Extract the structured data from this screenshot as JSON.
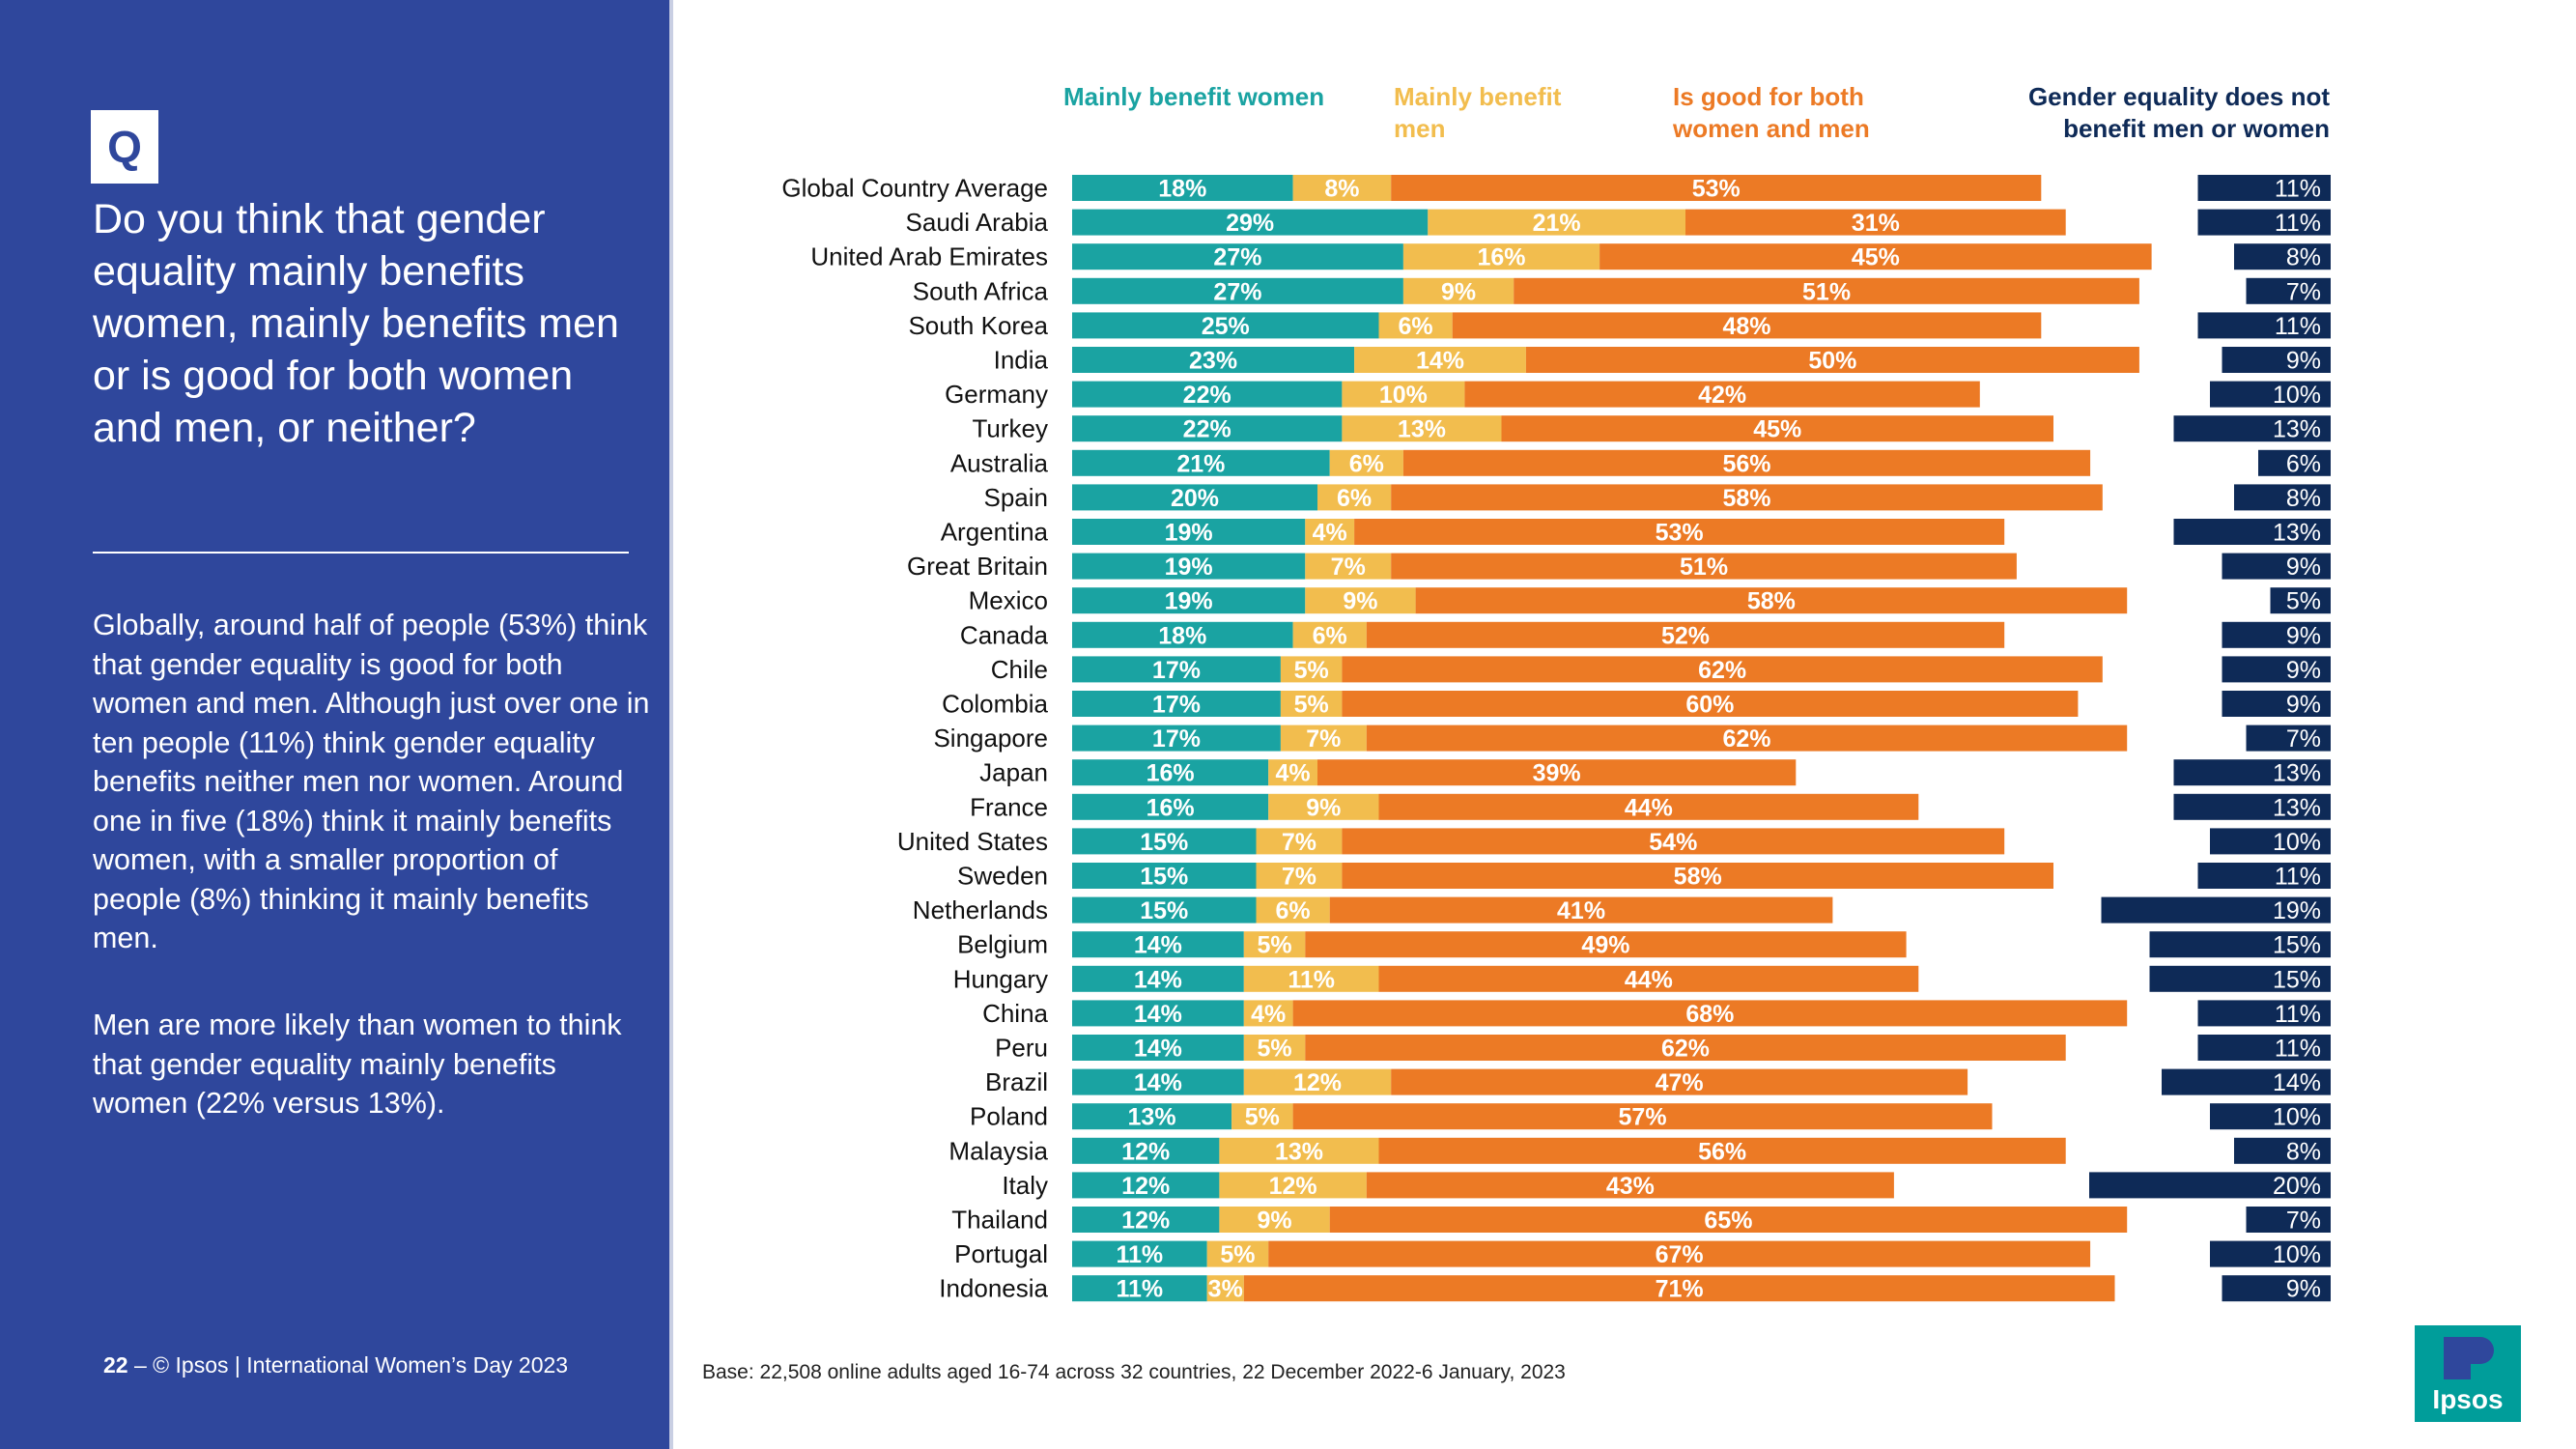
{
  "question": {
    "badge": "Q",
    "text": "Do you think that gender equality mainly benefits women, mainly benefits men or is good for both women and men, or neither?"
  },
  "summary": {
    "paragraph1": "Globally, around half of people (53%) think that gender equality is good for both women and men. Although just over one in ten people (11%) think gender equality benefits neither men nor women. Around one in five (18%) think it mainly benefits women, with a smaller proportion of people (8%) thinking it mainly benefits men.",
    "paragraph2": "Men are more likely than women to think that gender equality mainly benefits women (22% versus 13%)."
  },
  "footer": {
    "page_number": "22",
    "separator": "–",
    "text": "© Ipsos | International Women’s Day 2023"
  },
  "base_note": "Base: 22,508 online adults aged 16-74 across 32 countries, 22 December 2022-6 January, 2023",
  "logo": {
    "text": "Ipsos",
    "color": "#009d9a"
  },
  "colors": {
    "panel": "#2f479c",
    "women": "#1aa3a2",
    "men": "#f2bd4e",
    "both": "#ec7a25",
    "neither": "#0e2a57"
  },
  "chart_data": {
    "type": "bar",
    "orientation": "horizontal",
    "stacked": true,
    "series": [
      {
        "name": "Mainly benefit women",
        "values": [
          18,
          29,
          27,
          27,
          25,
          23,
          22,
          22,
          21,
          20,
          19,
          19,
          19,
          18,
          17,
          17,
          17,
          16,
          16,
          15,
          15,
          15,
          14,
          14,
          14,
          14,
          14,
          13,
          12,
          12,
          12,
          11,
          11
        ]
      },
      {
        "name": "Mainly benefit men",
        "values": [
          8,
          21,
          16,
          9,
          6,
          14,
          10,
          13,
          6,
          6,
          4,
          7,
          9,
          6,
          5,
          5,
          7,
          4,
          9,
          7,
          7,
          6,
          5,
          11,
          4,
          5,
          12,
          5,
          13,
          12,
          9,
          5,
          3
        ]
      },
      {
        "name": "Is good for both women and men",
        "values": [
          53,
          31,
          45,
          51,
          48,
          50,
          42,
          45,
          56,
          58,
          53,
          51,
          58,
          52,
          62,
          60,
          62,
          39,
          44,
          54,
          58,
          41,
          49,
          44,
          68,
          62,
          47,
          57,
          56,
          43,
          65,
          67,
          71
        ]
      },
      {
        "name": "Gender equality does not benefit men or women",
        "values": [
          11,
          11,
          8,
          7,
          11,
          9,
          10,
          13,
          6,
          8,
          13,
          9,
          5,
          9,
          9,
          9,
          7,
          13,
          13,
          10,
          11,
          19,
          15,
          15,
          11,
          11,
          14,
          10,
          8,
          20,
          7,
          10,
          9
        ]
      }
    ],
    "categories": [
      "Global Country Average",
      "Saudi Arabia",
      "United Arab Emirates",
      "South Africa",
      "South Korea",
      "India",
      "Germany",
      "Turkey",
      "Australia",
      "Spain",
      "Argentina",
      "Great Britain",
      "Mexico",
      "Canada",
      "Chile",
      "Colombia",
      "Singapore",
      "Japan",
      "France",
      "United States",
      "Sweden",
      "Netherlands",
      "Belgium",
      "Hungary",
      "China",
      "Peru",
      "Brazil",
      "Poland",
      "Malaysia",
      "Italy",
      "Thailand",
      "Portugal",
      "Indonesia"
    ],
    "unit": "%"
  }
}
